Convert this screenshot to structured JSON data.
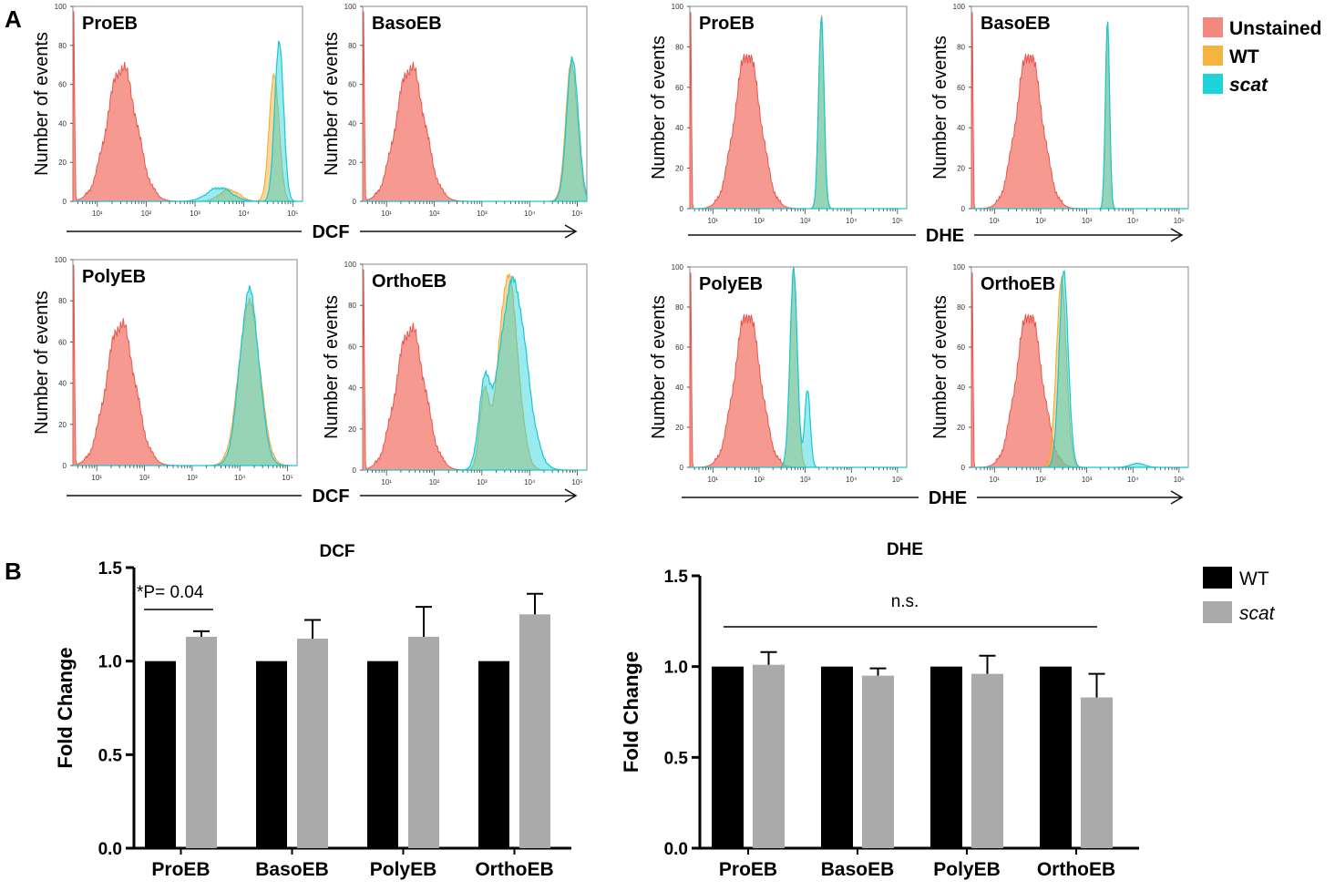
{
  "panel_labels": {
    "a": "A",
    "b": "B"
  },
  "colors": {
    "unstained": "#f4877e",
    "wt_hist": "#f5b441",
    "scat_hist": "#1fd3dc",
    "overlap": "#7fcfb1",
    "wt_bar": "#000000",
    "scat_bar": "#aaaaaa"
  },
  "flow_legend": [
    {
      "label": "Unstained",
      "color": "#f4877e"
    },
    {
      "label": "WT",
      "color": "#f5b441"
    },
    {
      "label": "scat",
      "color": "#1fd3dc"
    }
  ],
  "bar_legend": [
    {
      "label": "WT",
      "color": "#000000"
    },
    {
      "label": "scat",
      "color": "#aaaaaa"
    }
  ],
  "histogram_axes": {
    "ylabel": "Number of events",
    "y_ticks": [
      "0",
      "20",
      "40",
      "60",
      "80",
      "100"
    ],
    "x_ticks": [
      "10¹",
      "10²",
      "10³",
      "10⁴",
      "10⁵"
    ],
    "x_arrow_labels": {
      "dcf": "DCF",
      "dhe": "DHE"
    }
  },
  "chart_data": [
    {
      "type": "histogram",
      "stain": "DCF",
      "title": "ProEB",
      "xscale": "log",
      "xlim": [
        0.5,
        5.2
      ],
      "ylim": [
        0,
        100
      ],
      "unstained": {
        "center": 1.5,
        "peak": 69,
        "width": 0.3
      },
      "wt": [
        {
          "center": 4.62,
          "peak": 66,
          "width": 0.1
        },
        {
          "center": 3.7,
          "peak": 6,
          "width": 0.2
        }
      ],
      "scat": [
        {
          "center": 4.72,
          "peak": 82,
          "width": 0.09
        },
        {
          "center": 3.5,
          "peak": 7,
          "width": 0.25
        }
      ]
    },
    {
      "type": "histogram",
      "stain": "DCF",
      "title": "BasoEB",
      "xscale": "log",
      "xlim": [
        0.5,
        5.2
      ],
      "ylim": [
        0,
        100
      ],
      "unstained": {
        "center": 1.5,
        "peak": 69,
        "width": 0.3
      },
      "wt": [
        {
          "center": 4.88,
          "peak": 72,
          "width": 0.12
        }
      ],
      "scat": [
        {
          "center": 4.9,
          "peak": 74,
          "width": 0.12
        }
      ]
    },
    {
      "type": "histogram",
      "stain": "DHE",
      "title": "ProEB",
      "xscale": "log",
      "xlim": [
        0.5,
        5.2
      ],
      "ylim": [
        0,
        100
      ],
      "unstained": {
        "center": 1.75,
        "peak": 77,
        "width": 0.28
      },
      "wt": [
        {
          "center": 3.35,
          "peak": 94,
          "width": 0.06
        }
      ],
      "scat": [
        {
          "center": 3.35,
          "peak": 93,
          "width": 0.06
        }
      ]
    },
    {
      "type": "histogram",
      "stain": "DHE",
      "title": "BasoEB",
      "xscale": "log",
      "xlim": [
        0.5,
        5.2
      ],
      "ylim": [
        0,
        100
      ],
      "unstained": {
        "center": 1.75,
        "peak": 77,
        "width": 0.28
      },
      "wt": [
        {
          "center": 3.45,
          "peak": 94,
          "width": 0.045
        }
      ],
      "scat": [
        {
          "center": 3.45,
          "peak": 95,
          "width": 0.045
        }
      ]
    },
    {
      "type": "histogram",
      "stain": "DCF",
      "title": "PolyEB",
      "xscale": "log",
      "xlim": [
        0.5,
        5.2
      ],
      "ylim": [
        0,
        100
      ],
      "unstained": {
        "center": 1.5,
        "peak": 69,
        "width": 0.3
      },
      "wt": [
        {
          "center": 4.2,
          "peak": 79,
          "width": 0.22
        }
      ],
      "scat": [
        {
          "center": 4.2,
          "peak": 85,
          "width": 0.2
        }
      ]
    },
    {
      "type": "histogram",
      "stain": "DCF",
      "title": "OrthoEB",
      "xscale": "log",
      "xlim": [
        0.5,
        5.2
      ],
      "ylim": [
        0,
        100
      ],
      "unstained": {
        "center": 1.5,
        "peak": 69,
        "width": 0.3
      },
      "wt": [
        {
          "center": 3.55,
          "peak": 95,
          "width": 0.2
        },
        {
          "center": 3.05,
          "peak": 35,
          "width": 0.1
        }
      ],
      "scat": [
        {
          "center": 3.65,
          "peak": 92,
          "width": 0.28
        },
        {
          "center": 3.05,
          "peak": 36,
          "width": 0.12
        }
      ]
    },
    {
      "type": "histogram",
      "stain": "DHE",
      "title": "PolyEB",
      "xscale": "log",
      "xlim": [
        0.5,
        5.2
      ],
      "ylim": [
        0,
        100
      ],
      "unstained": {
        "center": 1.75,
        "peak": 77,
        "width": 0.28
      },
      "wt": [
        {
          "center": 2.75,
          "peak": 98,
          "width": 0.08
        }
      ],
      "scat": [
        {
          "center": 2.75,
          "peak": 98,
          "width": 0.08
        },
        {
          "center": 3.05,
          "peak": 38,
          "width": 0.06
        }
      ]
    },
    {
      "type": "histogram",
      "stain": "DHE",
      "title": "OrthoEB",
      "xscale": "log",
      "xlim": [
        0.5,
        5.2
      ],
      "ylim": [
        0,
        100
      ],
      "unstained": {
        "center": 1.75,
        "peak": 77,
        "width": 0.28
      },
      "wt": [
        {
          "center": 2.45,
          "peak": 93,
          "width": 0.11
        }
      ],
      "scat": [
        {
          "center": 2.5,
          "peak": 97,
          "width": 0.1
        },
        {
          "center": 4.1,
          "peak": 2,
          "width": 0.15
        }
      ]
    },
    {
      "type": "bar",
      "title": "DCF",
      "ylabel": "Fold Change",
      "ylim": [
        0,
        1.5
      ],
      "y_ticks": [
        "0.0",
        "0.5",
        "1.0",
        "1.5"
      ],
      "categories": [
        "ProEB",
        "BasoEB",
        "PolyEB",
        "OrthoEB"
      ],
      "series": [
        {
          "name": "WT",
          "values": [
            1.0,
            1.0,
            1.0,
            1.0
          ],
          "errors": [
            0,
            0,
            0,
            0
          ]
        },
        {
          "name": "scat",
          "values": [
            1.13,
            1.12,
            1.13,
            1.25
          ],
          "errors": [
            0.03,
            0.1,
            0.16,
            0.11
          ]
        }
      ],
      "annotation": "*P= 0.04"
    },
    {
      "type": "bar",
      "title": "DHE",
      "ylabel": "Fold Change",
      "ylim": [
        0,
        1.5
      ],
      "y_ticks": [
        "0.0",
        "0.5",
        "1.0",
        "1.5"
      ],
      "categories": [
        "ProEB",
        "BasoEB",
        "PolyEB",
        "OrthoEB"
      ],
      "series": [
        {
          "name": "WT",
          "values": [
            1.0,
            1.0,
            1.0,
            1.0
          ],
          "errors": [
            0,
            0,
            0,
            0
          ]
        },
        {
          "name": "scat",
          "values": [
            1.01,
            0.95,
            0.96,
            0.83
          ],
          "errors": [
            0.07,
            0.04,
            0.1,
            0.13
          ]
        }
      ],
      "annotation": "n.s."
    }
  ]
}
